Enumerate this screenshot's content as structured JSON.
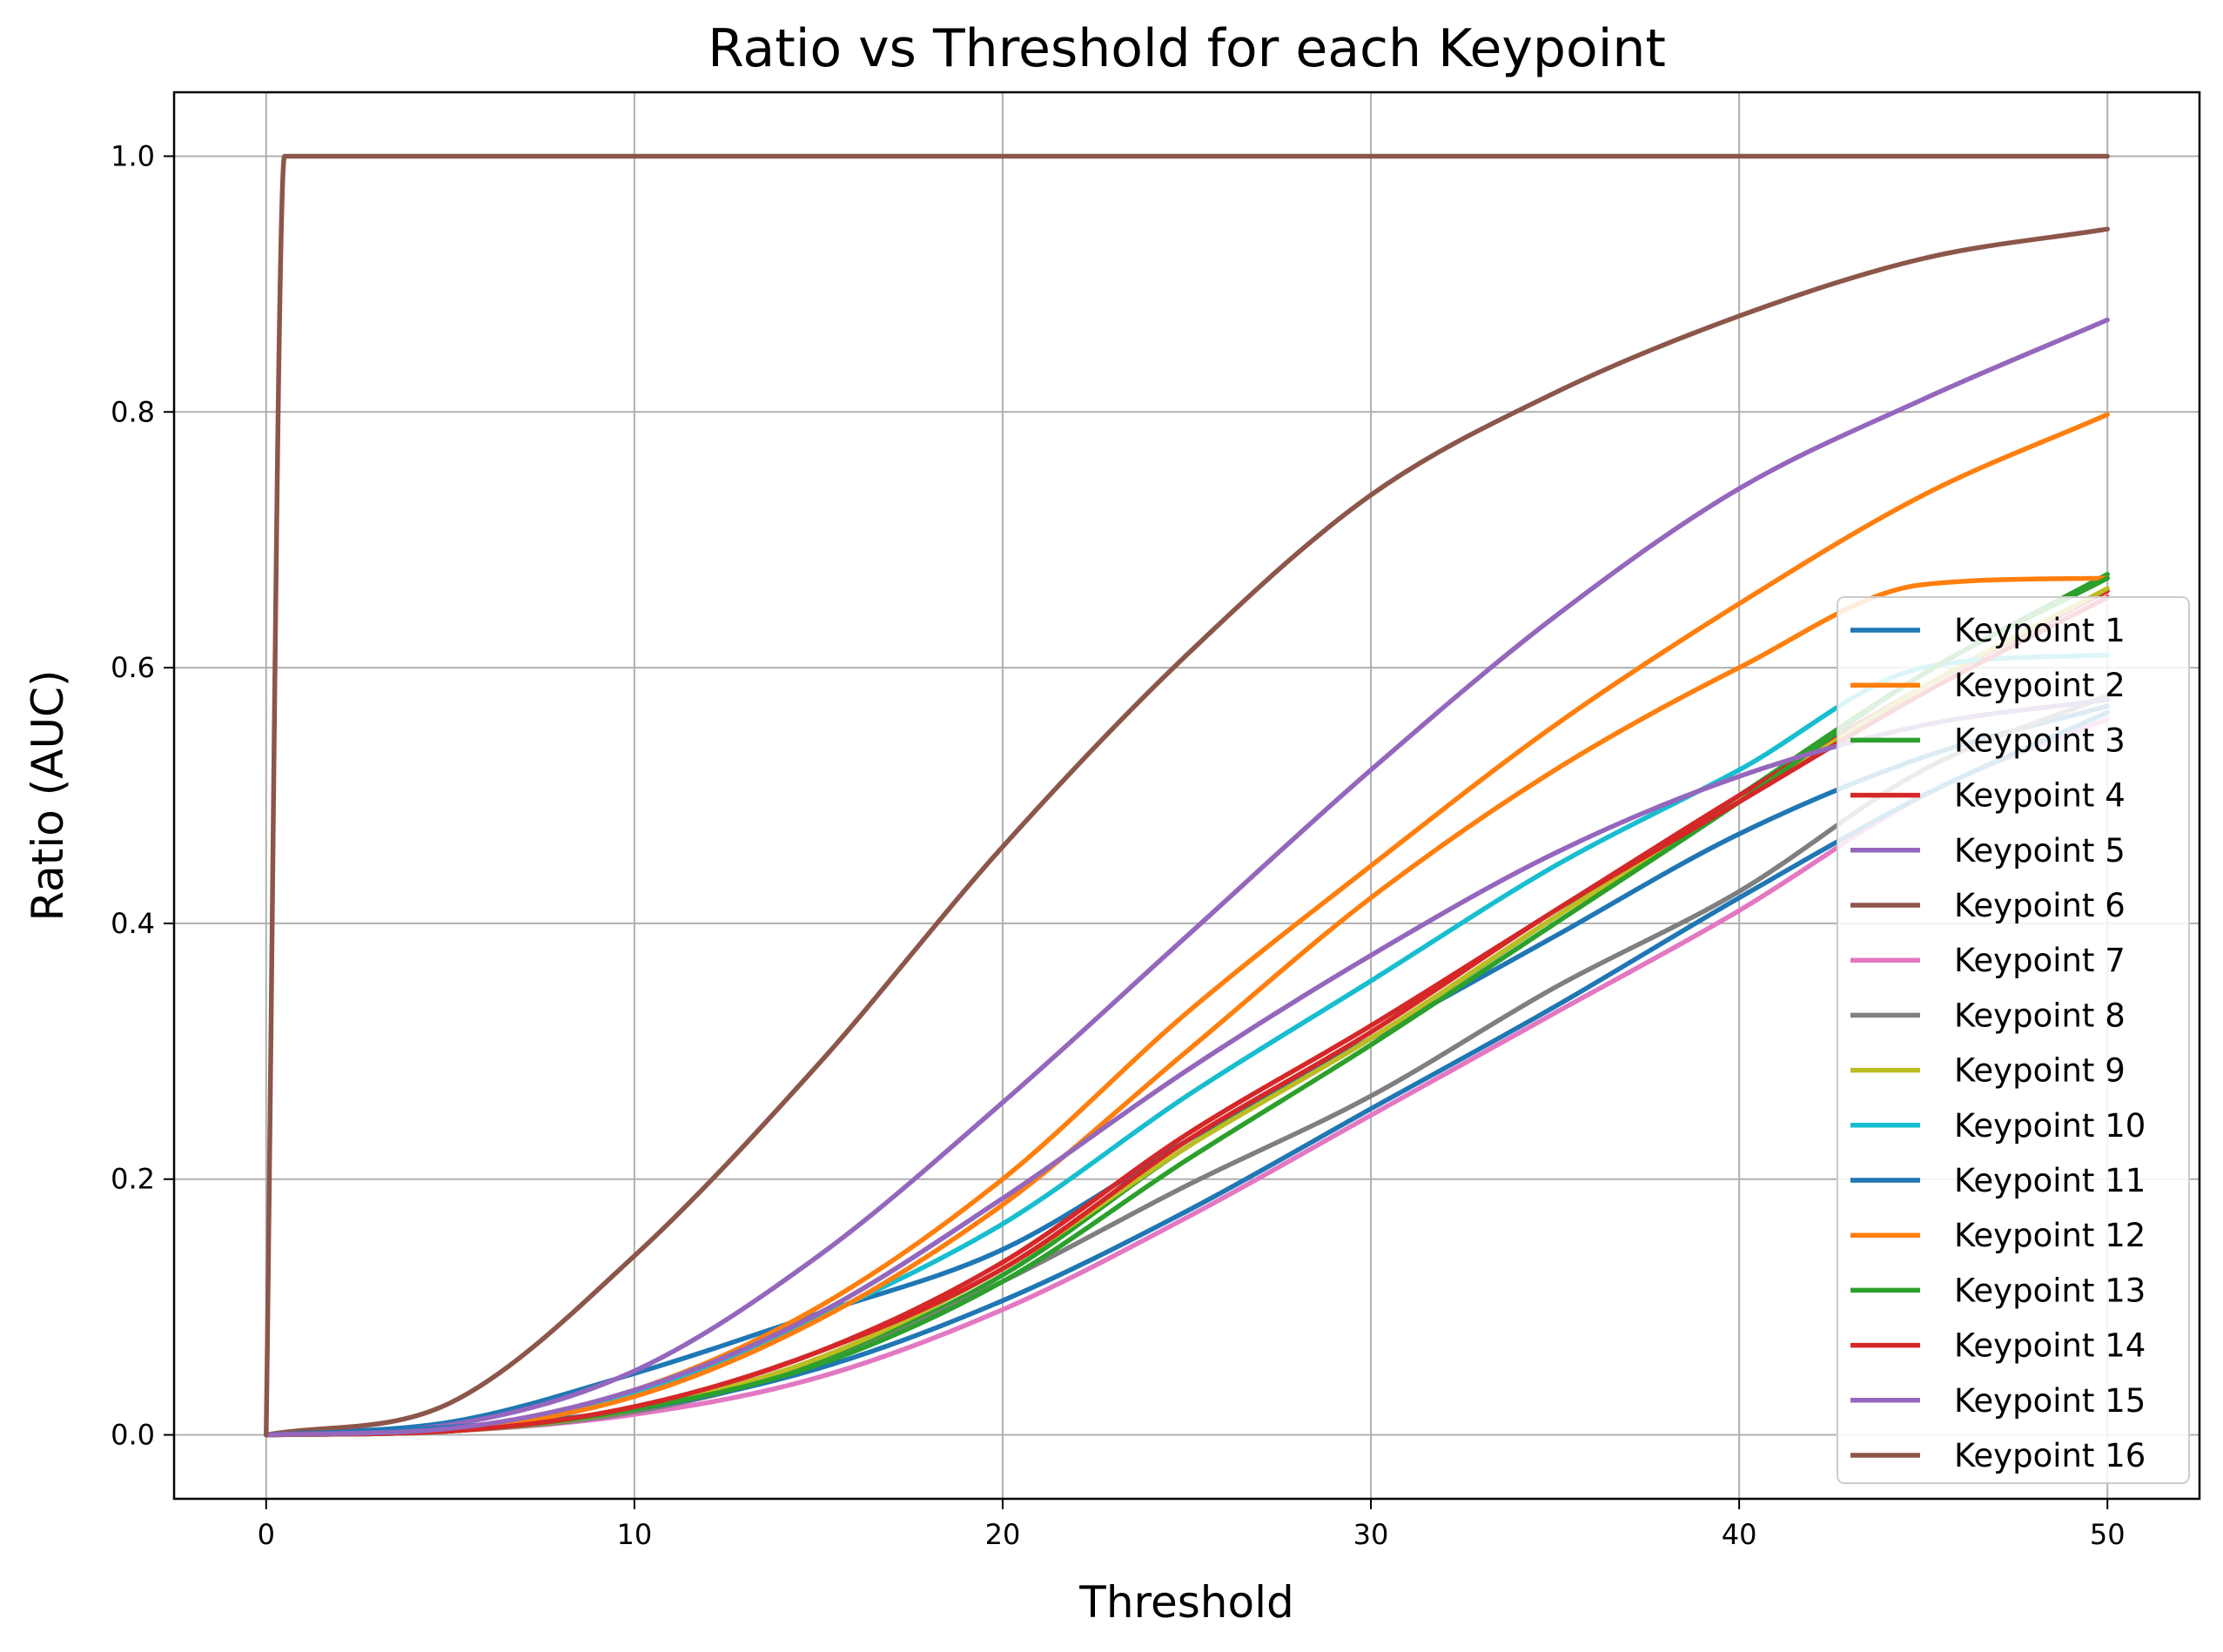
{
  "chart_data": {
    "type": "line",
    "title": "Ratio vs Threshold for each Keypoint",
    "xlabel": "Threshold",
    "ylabel": "Ratio (AUC)",
    "xlim": [
      -2.5,
      52.5
    ],
    "ylim": [
      -0.05,
      1.05
    ],
    "xticks": [
      0,
      10,
      20,
      30,
      40,
      50
    ],
    "yticks": [
      0.0,
      0.2,
      0.4,
      0.6,
      0.8,
      1.0
    ],
    "xtick_labels": [
      "0",
      "10",
      "20",
      "30",
      "40",
      "50"
    ],
    "ytick_labels": [
      "0.0",
      "0.2",
      "0.4",
      "0.6",
      "0.8",
      "1.0"
    ],
    "grid": true,
    "legend_position": "lower-right",
    "series": [
      {
        "name": "Keypoint 1",
        "color": "#1f77b4",
        "x": [
          0,
          5,
          10,
          15,
          20,
          25,
          30,
          35,
          40,
          45,
          50
        ],
        "y": [
          0,
          0.01,
          0.048,
          0.095,
          0.145,
          0.23,
          0.31,
          0.39,
          0.47,
          0.53,
          0.57
        ]
      },
      {
        "name": "Keypoint 2",
        "color": "#ff7f0e",
        "x": [
          0,
          5,
          10,
          15,
          20,
          25,
          30,
          35,
          40,
          45,
          50
        ],
        "y": [
          0,
          0.005,
          0.035,
          0.1,
          0.2,
          0.33,
          0.445,
          0.555,
          0.65,
          0.735,
          0.798
        ]
      },
      {
        "name": "Keypoint 3",
        "color": "#2ca02c",
        "x": [
          0,
          5,
          10,
          15,
          20,
          25,
          30,
          35,
          40,
          45,
          50
        ],
        "y": [
          0,
          0.003,
          0.02,
          0.058,
          0.125,
          0.225,
          0.31,
          0.405,
          0.5,
          0.595,
          0.673
        ]
      },
      {
        "name": "Keypoint 4",
        "color": "#d62728",
        "x": [
          0,
          5,
          10,
          15,
          20,
          25,
          30,
          35,
          40,
          45,
          50
        ],
        "y": [
          0,
          0.003,
          0.022,
          0.065,
          0.135,
          0.235,
          0.32,
          0.41,
          0.5,
          0.585,
          0.66
        ]
      },
      {
        "name": "Keypoint 5",
        "color": "#9467bd",
        "x": [
          0,
          5,
          10,
          15,
          20,
          25,
          30,
          35,
          40,
          45,
          50
        ],
        "y": [
          0,
          0.008,
          0.05,
          0.14,
          0.26,
          0.39,
          0.52,
          0.64,
          0.74,
          0.81,
          0.872
        ]
      },
      {
        "name": "Keypoint 6",
        "color": "#8c564b",
        "x": [
          0,
          5,
          10,
          15,
          20,
          25,
          30,
          35,
          40,
          45,
          50
        ],
        "y": [
          0,
          0.025,
          0.14,
          0.29,
          0.46,
          0.61,
          0.735,
          0.815,
          0.875,
          0.92,
          0.943
        ]
      },
      {
        "name": "Keypoint 7",
        "color": "#e377c2",
        "x": [
          0,
          5,
          10,
          15,
          20,
          25,
          30,
          35,
          40,
          45,
          50
        ],
        "y": [
          0,
          0.003,
          0.016,
          0.045,
          0.098,
          0.17,
          0.25,
          0.33,
          0.41,
          0.5,
          0.56
        ]
      },
      {
        "name": "Keypoint 8",
        "color": "#7f7f7f",
        "x": [
          0,
          5,
          10,
          15,
          20,
          25,
          30,
          35,
          40,
          45,
          50
        ],
        "y": [
          0,
          0.003,
          0.018,
          0.055,
          0.12,
          0.195,
          0.265,
          0.35,
          0.425,
          0.52,
          0.578
        ]
      },
      {
        "name": "Keypoint 9",
        "color": "#bcbd22",
        "x": [
          0,
          5,
          10,
          15,
          20,
          25,
          30,
          35,
          40,
          45,
          50
        ],
        "y": [
          0,
          0.003,
          0.02,
          0.06,
          0.13,
          0.225,
          0.31,
          0.405,
          0.495,
          0.585,
          0.662
        ]
      },
      {
        "name": "Keypoint 10",
        "color": "#17becf",
        "x": [
          0,
          5,
          10,
          15,
          20,
          25,
          30,
          35,
          40,
          45,
          50
        ],
        "y": [
          0,
          0.004,
          0.032,
          0.092,
          0.165,
          0.265,
          0.355,
          0.445,
          0.52,
          0.6,
          0.61
        ]
      },
      {
        "name": "Keypoint 11",
        "color": "#1f77b4",
        "x": [
          0,
          5,
          10,
          15,
          20,
          25,
          30,
          35,
          40,
          45,
          50
        ],
        "y": [
          0,
          0.006,
          0.02,
          0.052,
          0.105,
          0.175,
          0.255,
          0.335,
          0.42,
          0.5,
          0.565
        ]
      },
      {
        "name": "Keypoint 12",
        "color": "#ff7f0e",
        "x": [
          0,
          5,
          10,
          15,
          20,
          25,
          30,
          35,
          40,
          45,
          50
        ],
        "y": [
          0,
          0.004,
          0.03,
          0.09,
          0.18,
          0.3,
          0.42,
          0.52,
          0.6,
          0.665,
          0.67
        ]
      },
      {
        "name": "Keypoint 13",
        "color": "#2ca02c",
        "x": [
          0,
          5,
          10,
          15,
          20,
          25,
          30,
          35,
          40,
          45,
          50
        ],
        "y": [
          0,
          0.003,
          0.02,
          0.055,
          0.12,
          0.215,
          0.305,
          0.4,
          0.495,
          0.595,
          0.67
        ]
      },
      {
        "name": "Keypoint 14",
        "color": "#d62728",
        "x": [
          0,
          5,
          10,
          15,
          20,
          25,
          30,
          35,
          40,
          45,
          50
        ],
        "y": [
          0,
          0.003,
          0.022,
          0.065,
          0.13,
          0.23,
          0.315,
          0.41,
          0.495,
          0.58,
          0.655
        ]
      },
      {
        "name": "Keypoint 15",
        "color": "#9467bd",
        "x": [
          0,
          5,
          10,
          15,
          20,
          25,
          30,
          35,
          40,
          45,
          50
        ],
        "y": [
          0,
          0.005,
          0.035,
          0.095,
          0.185,
          0.285,
          0.375,
          0.455,
          0.515,
          0.555,
          0.575
        ]
      },
      {
        "name": "Keypoint 16",
        "color": "#8c564b",
        "x": [
          0,
          0.5,
          5,
          10,
          15,
          20,
          25,
          30,
          35,
          40,
          45,
          50
        ],
        "y": [
          0,
          1.0,
          1.0,
          1.0,
          1.0,
          1.0,
          1.0,
          1.0,
          1.0,
          1.0,
          1.0,
          1.0
        ]
      }
    ]
  }
}
